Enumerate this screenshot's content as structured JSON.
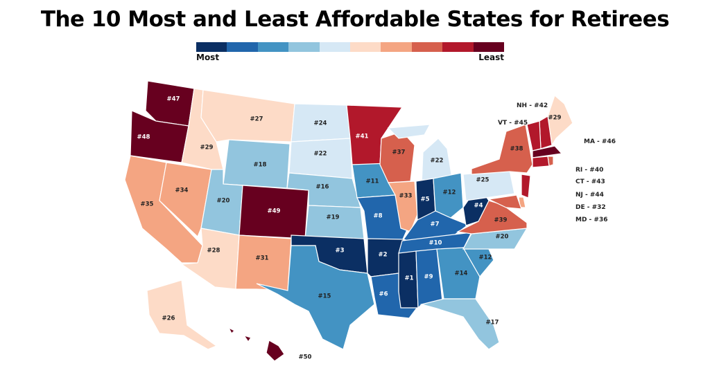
{
  "title": "The 10 Most and Least Affordable States for Retirees",
  "legend": {
    "colors": [
      "#0b2f63",
      "#2166ac",
      "#4393c3",
      "#92c5de",
      "#d6e8f5",
      "#fddbc7",
      "#f4a582",
      "#d6604d",
      "#b2182b",
      "#67001f"
    ],
    "most_label": "Most",
    "least_label": "Least"
  },
  "states": [
    {
      "abbr": "WA",
      "rank": 47,
      "label": "#47"
    },
    {
      "abbr": "OR",
      "rank": 48,
      "label": "#48"
    },
    {
      "abbr": "CA",
      "rank": 35,
      "label": "#35"
    },
    {
      "abbr": "NV",
      "rank": 34,
      "label": "#34"
    },
    {
      "abbr": "ID",
      "rank": 29,
      "label": "#29"
    },
    {
      "abbr": "MT",
      "rank": 27,
      "label": "#27"
    },
    {
      "abbr": "WY",
      "rank": 18,
      "label": "#18"
    },
    {
      "abbr": "UT",
      "rank": 20,
      "label": "#20"
    },
    {
      "abbr": "CO",
      "rank": 49,
      "label": "#49"
    },
    {
      "abbr": "AZ",
      "rank": 28,
      "label": "#28"
    },
    {
      "abbr": "NM",
      "rank": 31,
      "label": "#31"
    },
    {
      "abbr": "ND",
      "rank": 24,
      "label": "#24"
    },
    {
      "abbr": "SD",
      "rank": 22,
      "label": "#22"
    },
    {
      "abbr": "NE",
      "rank": 16,
      "label": "#16"
    },
    {
      "abbr": "KS",
      "rank": 19,
      "label": "#19"
    },
    {
      "abbr": "OK",
      "rank": 3,
      "label": "#3"
    },
    {
      "abbr": "TX",
      "rank": 15,
      "label": "#15"
    },
    {
      "abbr": "MN",
      "rank": 41,
      "label": "#41"
    },
    {
      "abbr": "IA",
      "rank": 11,
      "label": "#11"
    },
    {
      "abbr": "MO",
      "rank": 8,
      "label": "#8"
    },
    {
      "abbr": "AR",
      "rank": 2,
      "label": "#2"
    },
    {
      "abbr": "LA",
      "rank": 6,
      "label": "#6"
    },
    {
      "abbr": "WI",
      "rank": 37,
      "label": "#37"
    },
    {
      "abbr": "IL",
      "rank": 33,
      "label": "#33"
    },
    {
      "abbr": "MI",
      "rank": 22,
      "label": "#22"
    },
    {
      "abbr": "IN",
      "rank": 5,
      "label": "#5"
    },
    {
      "abbr": "OH",
      "rank": 12,
      "label": "#12"
    },
    {
      "abbr": "KY",
      "rank": 7,
      "label": "#7"
    },
    {
      "abbr": "TN",
      "rank": 10,
      "label": "#10"
    },
    {
      "abbr": "MS",
      "rank": 1,
      "label": "#1"
    },
    {
      "abbr": "AL",
      "rank": 9,
      "label": "#9"
    },
    {
      "abbr": "GA",
      "rank": 14,
      "label": "#14"
    },
    {
      "abbr": "FL",
      "rank": 17,
      "label": "#17"
    },
    {
      "abbr": "SC",
      "rank": 12,
      "label": "#12"
    },
    {
      "abbr": "NC",
      "rank": 20,
      "label": "#20"
    },
    {
      "abbr": "VA",
      "rank": 39,
      "label": "#39"
    },
    {
      "abbr": "WV",
      "rank": 4,
      "label": "#4"
    },
    {
      "abbr": "PA",
      "rank": 25,
      "label": "#25"
    },
    {
      "abbr": "NY",
      "rank": 38,
      "label": "#38"
    },
    {
      "abbr": "ME",
      "rank": 29,
      "label": "#29"
    },
    {
      "abbr": "AK",
      "rank": 26,
      "label": "#26"
    },
    {
      "abbr": "HI",
      "rank": 50,
      "label": "#50"
    },
    {
      "abbr": "NH",
      "rank": 42,
      "label": "NH - #42"
    },
    {
      "abbr": "VT",
      "rank": 45,
      "label": "VT - #45"
    },
    {
      "abbr": "MA",
      "rank": 46,
      "label": "MA - #46"
    },
    {
      "abbr": "RI",
      "rank": 40,
      "label": "RI - #40"
    },
    {
      "abbr": "CT",
      "rank": 43,
      "label": "CT - #43"
    },
    {
      "abbr": "NJ",
      "rank": 44,
      "label": "NJ - #44"
    },
    {
      "abbr": "DE",
      "rank": 32,
      "label": "DE - #32"
    },
    {
      "abbr": "MD",
      "rank": 36,
      "label": "MD - #36"
    }
  ]
}
